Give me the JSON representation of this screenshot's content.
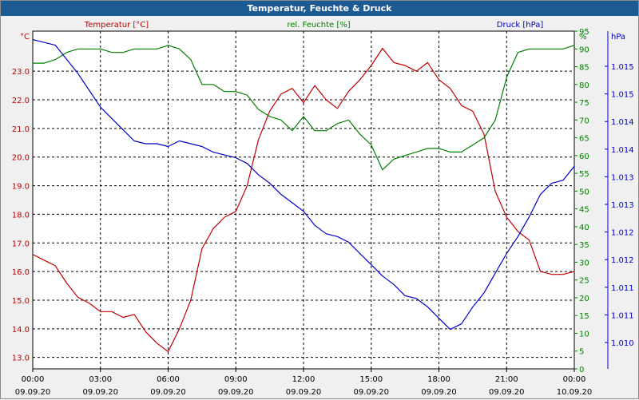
{
  "window": {
    "title": "Temperatur, Feuchte & Druck"
  },
  "colors": {
    "temperature": "#c00000",
    "humidity": "#008000",
    "pressure": "#0000c8",
    "titlebar": "#1c5a94"
  },
  "chart_data": {
    "type": "line",
    "title": "Temperatur, Feuchte & Druck",
    "grid": true,
    "x_unit_label": "",
    "x_ticks": [
      {
        "time": "00:00",
        "date": "09.09.20"
      },
      {
        "time": "03:00",
        "date": "09.09.20"
      },
      {
        "time": "06:00",
        "date": "09.09.20"
      },
      {
        "time": "09:00",
        "date": "09.09.20"
      },
      {
        "time": "12:00",
        "date": "09.09.20"
      },
      {
        "time": "15:00",
        "date": "09.09.20"
      },
      {
        "time": "18:00",
        "date": "09.09.20"
      },
      {
        "time": "21:00",
        "date": "09.09.20"
      },
      {
        "time": "00:00",
        "date": "10.09.20"
      }
    ],
    "xlim_hours": [
      0,
      24
    ],
    "axes": {
      "temperature": {
        "unit": "°C",
        "ylim": [
          12.6,
          24.4
        ],
        "ticks": [
          "13.0",
          "14.0",
          "15.0",
          "16.0",
          "17.0",
          "18.0",
          "19.0",
          "20.0",
          "21.0",
          "22.0",
          "23.0"
        ]
      },
      "humidity": {
        "unit": "%",
        "ylim": [
          0,
          95
        ],
        "ticks": [
          "0",
          "5",
          "10",
          "15",
          "20",
          "25",
          "30",
          "35",
          "40",
          "45",
          "50",
          "55",
          "60",
          "65",
          "70",
          "75",
          "80",
          "85",
          "90",
          "95",
          "%"
        ]
      },
      "pressure": {
        "unit": "hPa",
        "ylim": [
          1009.5,
          1015.5
        ],
        "ticks": [
          "1.010",
          "1.011",
          "1.011",
          "1.012",
          "1.012",
          "1.013",
          "1.013",
          "1.014",
          "1.014",
          "1.015",
          "1.015",
          "hPa"
        ]
      }
    },
    "series": [
      {
        "name": "Temperatur [°C]",
        "axis": "temperature",
        "x": [
          0,
          0.5,
          1,
          1.5,
          2,
          2.5,
          3,
          3.5,
          4,
          4.5,
          5,
          5.5,
          6,
          6.5,
          7,
          7.5,
          8,
          8.5,
          9,
          9.5,
          10,
          10.5,
          11,
          11.5,
          12,
          12.5,
          13,
          13.5,
          14,
          14.5,
          15,
          15.5,
          16,
          16.5,
          17,
          17.5,
          18,
          18.5,
          19,
          19.5,
          20,
          20.5,
          21,
          21.5,
          22,
          22.5,
          23,
          23.5,
          24
        ],
        "values": [
          16.6,
          16.4,
          16.2,
          15.6,
          15.1,
          14.9,
          14.6,
          14.6,
          14.4,
          14.5,
          13.9,
          13.5,
          13.2,
          14.0,
          15.0,
          16.8,
          17.5,
          17.9,
          18.1,
          19.0,
          20.6,
          21.6,
          22.2,
          22.4,
          21.9,
          22.5,
          22.0,
          21.7,
          22.3,
          22.7,
          23.2,
          23.8,
          23.3,
          23.2,
          23.0,
          23.3,
          22.7,
          22.4,
          21.8,
          21.6,
          20.8,
          18.8,
          17.9,
          17.4,
          17.1,
          16.0,
          15.9,
          15.9,
          16.0
        ]
      },
      {
        "name": "rel. Feuchte [%]",
        "axis": "humidity",
        "x": [
          0,
          0.5,
          1,
          1.5,
          2,
          2.5,
          3,
          3.5,
          4,
          4.5,
          5,
          5.5,
          6,
          6.5,
          7,
          7.5,
          8,
          8.5,
          9,
          9.5,
          10,
          10.5,
          11,
          11.5,
          12,
          12.5,
          13,
          13.5,
          14,
          14.5,
          15,
          15.5,
          16,
          16.5,
          17,
          17.5,
          18,
          18.5,
          19,
          19.5,
          20,
          20.5,
          21,
          21.5,
          22,
          22.5,
          23,
          23.5,
          24
        ],
        "values": [
          86,
          86,
          87,
          89,
          90,
          90,
          90,
          89,
          89,
          90,
          90,
          90,
          91,
          90,
          87,
          80,
          80,
          78,
          78,
          77,
          73,
          71,
          70,
          67,
          71,
          67,
          67,
          69,
          70,
          66,
          63,
          56,
          59,
          60,
          61,
          62,
          62,
          61,
          61,
          63,
          65,
          70,
          82,
          89,
          90,
          90,
          90,
          90,
          91
        ]
      },
      {
        "name": "Druck [hPa]",
        "axis": "pressure",
        "x": [
          0,
          0.5,
          1,
          1.5,
          2,
          2.5,
          3,
          3.5,
          4,
          4.5,
          5,
          5.5,
          6,
          6.5,
          7,
          7.5,
          8,
          8.5,
          9,
          9.5,
          10,
          10.5,
          11,
          11.5,
          12,
          12.5,
          13,
          13.5,
          14,
          14.5,
          15,
          15.5,
          16,
          16.5,
          17,
          17.5,
          18,
          18.5,
          19,
          19.5,
          20,
          20.5,
          21,
          21.5,
          22,
          22.5,
          23,
          23.5,
          24
        ],
        "values": [
          1015.35,
          1015.3,
          1015.25,
          1015.0,
          1014.75,
          1014.45,
          1014.15,
          1013.95,
          1013.75,
          1013.55,
          1013.5,
          1013.5,
          1013.45,
          1013.55,
          1013.5,
          1013.45,
          1013.35,
          1013.3,
          1013.25,
          1013.15,
          1012.95,
          1012.8,
          1012.6,
          1012.45,
          1012.3,
          1012.05,
          1011.9,
          1011.85,
          1011.75,
          1011.55,
          1011.35,
          1011.15,
          1011.0,
          1010.8,
          1010.75,
          1010.6,
          1010.4,
          1010.2,
          1010.3,
          1010.6,
          1010.85,
          1011.2,
          1011.55,
          1011.85,
          1012.2,
          1012.6,
          1012.8,
          1012.85,
          1013.1
        ]
      }
    ]
  }
}
